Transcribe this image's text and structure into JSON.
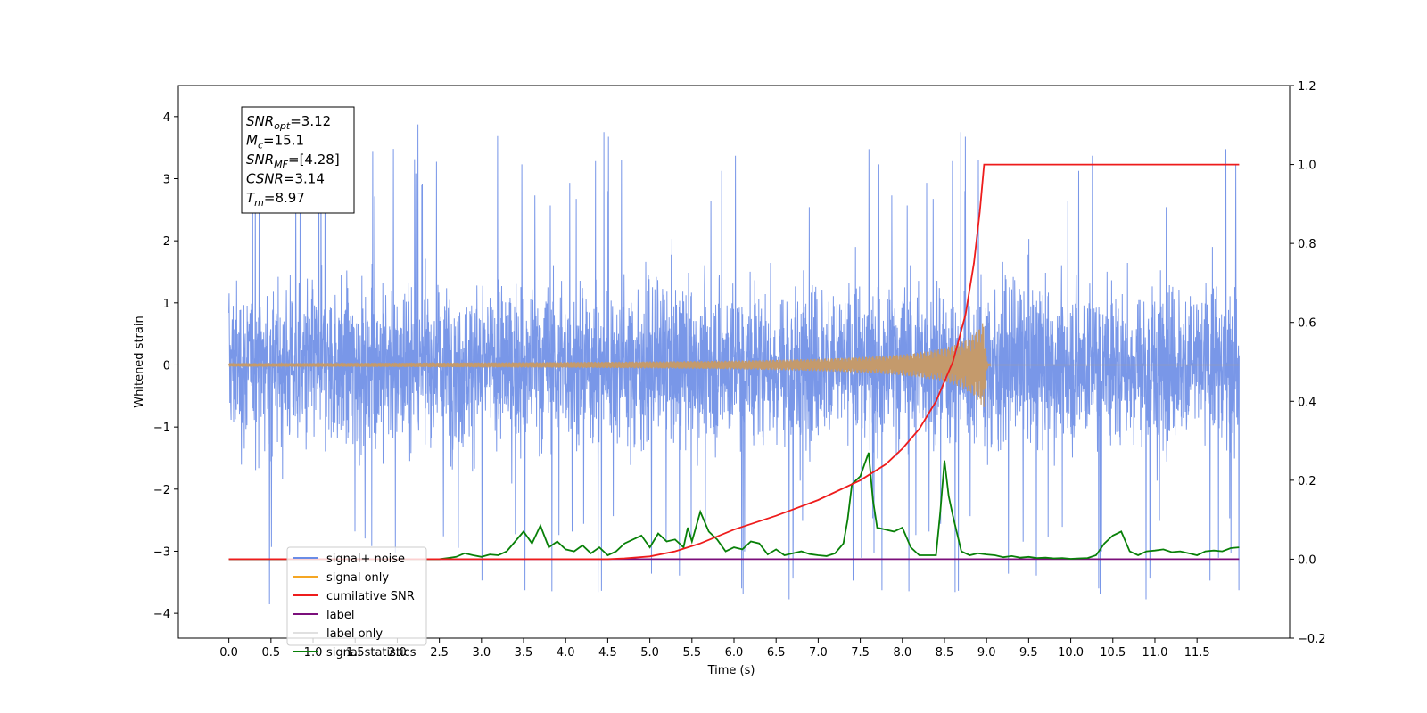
{
  "chart_data": {
    "type": "line",
    "xlabel": "Time (s)",
    "ylabel": "Whitened strain",
    "xlim": [
      -0.6,
      12.6
    ],
    "ylim": [
      -4.4,
      4.5
    ],
    "ylim_right": [
      -0.2,
      1.2
    ],
    "x_ticks": [
      "0.0",
      "0.5",
      "1.0",
      "1.5",
      "2.0",
      "2.5",
      "3.0",
      "3.5",
      "4.0",
      "4.5",
      "5.0",
      "5.5",
      "6.0",
      "6.5",
      "7.0",
      "7.5",
      "8.0",
      "8.5",
      "9.0",
      "9.5",
      "10.0",
      "10.5",
      "11.0",
      "11.5"
    ],
    "y_ticks_left": [
      "−4",
      "−3",
      "−2",
      "−1",
      "0",
      "1",
      "2",
      "3",
      "4"
    ],
    "y_ticks_right": [
      "−0.2",
      "0.0",
      "0.2",
      "0.4",
      "0.6",
      "0.8",
      "1.0",
      "1.2"
    ],
    "grid": false,
    "legend_position": "lower-left",
    "stats": [
      {
        "name": "SNR",
        "sub": "opt",
        "value": "=3.12"
      },
      {
        "name": "M",
        "sub": "c",
        "value": "=15.1"
      },
      {
        "name": "SNR",
        "sub": "MF",
        "value": "=[4.28]"
      },
      {
        "name": "CSNR",
        "sub": "",
        "value": "=3.14"
      },
      {
        "name": "T",
        "sub": "m",
        "value": "=8.97"
      }
    ],
    "series": [
      {
        "name": "signal+ noise",
        "color": "#6a8ce6",
        "axis": "left",
        "x_range": [
          0.0,
          12.0
        ],
        "amplitude": 1.6,
        "peak_max": 4.12,
        "peak_min": -3.94
      },
      {
        "name": "signal only",
        "color": "#f5a623",
        "axis": "left",
        "chirp_end": 8.97,
        "peak_amplitude": 0.72
      },
      {
        "name": "cumilative SNR",
        "color": "#ee1c1c",
        "axis": "right",
        "x": [
          0.0,
          4.5,
          4.7,
          5.0,
          5.3,
          5.6,
          6.0,
          6.5,
          7.0,
          7.5,
          7.8,
          8.0,
          8.2,
          8.4,
          8.6,
          8.75,
          8.85,
          8.92,
          8.97,
          9.5,
          12.0
        ],
        "values": [
          0.0,
          0.0,
          0.002,
          0.007,
          0.02,
          0.04,
          0.075,
          0.11,
          0.15,
          0.2,
          0.24,
          0.28,
          0.33,
          0.4,
          0.5,
          0.62,
          0.75,
          0.88,
          1.0,
          1.0,
          1.0
        ]
      },
      {
        "name": "label",
        "color": "#7b0f7b",
        "axis": "right",
        "x": [
          0.0,
          12.0
        ],
        "values": [
          0.0,
          0.0
        ]
      },
      {
        "name": "label only",
        "color": "#e0e0e0",
        "axis": "right",
        "x": [],
        "values": []
      },
      {
        "name": "signal statistics",
        "color": "#088008",
        "axis": "right",
        "x": [
          0.0,
          2.5,
          2.6,
          2.7,
          2.8,
          2.9,
          3.0,
          3.1,
          3.2,
          3.3,
          3.4,
          3.5,
          3.6,
          3.7,
          3.8,
          3.9,
          4.0,
          4.1,
          4.2,
          4.3,
          4.4,
          4.5,
          4.6,
          4.7,
          4.8,
          4.9,
          5.0,
          5.1,
          5.2,
          5.3,
          5.4,
          5.45,
          5.5,
          5.6,
          5.7,
          5.8,
          5.9,
          6.0,
          6.1,
          6.2,
          6.3,
          6.4,
          6.5,
          6.6,
          6.7,
          6.8,
          6.9,
          7.0,
          7.1,
          7.2,
          7.3,
          7.35,
          7.4,
          7.5,
          7.55,
          7.6,
          7.65,
          7.7,
          7.8,
          7.9,
          8.0,
          8.1,
          8.2,
          8.3,
          8.4,
          8.45,
          8.5,
          8.55,
          8.6,
          8.7,
          8.8,
          8.9,
          9.0,
          9.1,
          9.2,
          9.3,
          9.4,
          9.5,
          9.6,
          9.7,
          9.8,
          9.9,
          10.0,
          10.1,
          10.2,
          10.3,
          10.4,
          10.5,
          10.6,
          10.7,
          10.8,
          10.9,
          11.0,
          11.1,
          11.2,
          11.3,
          11.4,
          11.5,
          11.6,
          11.7,
          11.8,
          11.9,
          12.0
        ],
        "values": [
          0.0,
          0.0,
          0.003,
          0.006,
          0.015,
          0.01,
          0.006,
          0.012,
          0.01,
          0.02,
          0.045,
          0.07,
          0.04,
          0.085,
          0.03,
          0.045,
          0.025,
          0.02,
          0.035,
          0.015,
          0.03,
          0.01,
          0.02,
          0.04,
          0.05,
          0.06,
          0.03,
          0.065,
          0.045,
          0.05,
          0.03,
          0.08,
          0.045,
          0.12,
          0.07,
          0.05,
          0.02,
          0.03,
          0.025,
          0.045,
          0.04,
          0.012,
          0.025,
          0.01,
          0.015,
          0.02,
          0.013,
          0.01,
          0.008,
          0.015,
          0.04,
          0.1,
          0.19,
          0.21,
          0.24,
          0.27,
          0.15,
          0.08,
          0.075,
          0.07,
          0.08,
          0.03,
          0.01,
          0.01,
          0.01,
          0.12,
          0.25,
          0.16,
          0.11,
          0.02,
          0.01,
          0.015,
          0.012,
          0.01,
          0.005,
          0.008,
          0.004,
          0.006,
          0.003,
          0.004,
          0.002,
          0.003,
          0.001,
          0.002,
          0.003,
          0.01,
          0.04,
          0.06,
          0.07,
          0.02,
          0.01,
          0.02,
          0.022,
          0.025,
          0.018,
          0.02,
          0.015,
          0.01,
          0.02,
          0.022,
          0.02,
          0.028,
          0.03
        ]
      }
    ]
  }
}
